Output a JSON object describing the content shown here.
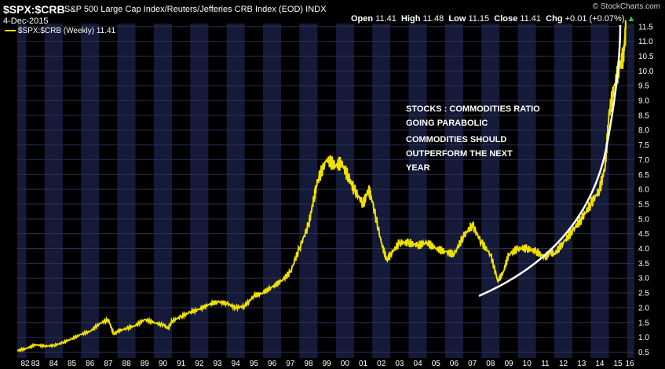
{
  "header": {
    "symbol": "$SPX:$CRB",
    "name": "S&P 500 Large Cap Index/Reuters/Jefferies CRB Index (EOD)  INDX",
    "date": "4-Dec-2015",
    "brand": "© StockCharts.com"
  },
  "ohlc": {
    "open_label": "Open",
    "open": "11.41",
    "high_label": "High",
    "high": "11.48",
    "low_label": "Low",
    "low": "11.15",
    "close_label": "Close",
    "close": "11.41",
    "chg_label": "Chg",
    "chg": "+0.01 (+0.07%)"
  },
  "legend": {
    "label": "$SPX:$CRB (Weekly) 11.41"
  },
  "annotations": {
    "line1": "STOCKS : COMMODITIES RATIO",
    "line2": "GOING PARABOLIC",
    "line3": "COMMODITIES SHOULD",
    "line4": "OUTPERFORM THE NEXT",
    "line5": "YEAR"
  },
  "colors": {
    "series": "#f0e000",
    "band_dark": "#000000",
    "band_light": "#141a38",
    "grid": "#2a3152",
    "curve": "#ffffff",
    "up": "#2ecc40"
  },
  "chart_data": {
    "type": "line",
    "title": "$SPX:$CRB",
    "xlabel": "",
    "ylabel": "",
    "x_ticks": [
      "82",
      "83",
      "84",
      "85",
      "86",
      "87",
      "88",
      "89",
      "90",
      "91",
      "92",
      "93",
      "94",
      "95",
      "96",
      "97",
      "98",
      "99",
      "00",
      "01",
      "02",
      "03",
      "04",
      "05",
      "06",
      "07",
      "08",
      "09",
      "10",
      "11",
      "12",
      "13",
      "14",
      "15",
      "16"
    ],
    "y_ticks": [
      "0.5",
      "1.0",
      "1.5",
      "2.0",
      "2.5",
      "3.0",
      "3.5",
      "4.0",
      "4.5",
      "5.0",
      "5.5",
      "6.0",
      "6.5",
      "7.0",
      "7.5",
      "8.0",
      "8.5",
      "9.0",
      "9.5",
      "10.0",
      "10.5",
      "11.0",
      "11.5"
    ],
    "ylim": [
      0.3,
      11.6
    ],
    "xlim": [
      1982.5,
      2016.4
    ],
    "grid": true,
    "y_axis_side": "right",
    "series": [
      {
        "name": "$SPX:$CRB",
        "x": [
          1982.5,
          1983.0,
          1983.5,
          1984.0,
          1984.5,
          1985.0,
          1985.5,
          1986.0,
          1986.5,
          1987.0,
          1987.5,
          1987.8,
          1988.0,
          1988.5,
          1989.0,
          1989.5,
          1990.0,
          1990.6,
          1990.8,
          1991.0,
          1991.5,
          1992.0,
          1992.5,
          1993.0,
          1993.5,
          1994.0,
          1994.5,
          1995.0,
          1995.5,
          1996.0,
          1996.5,
          1997.0,
          1997.5,
          1998.0,
          1998.5,
          1998.8,
          1999.0,
          1999.5,
          2000.0,
          2000.3,
          2000.7,
          2001.0,
          2001.5,
          2001.8,
          2002.0,
          2002.5,
          2002.8,
          2003.0,
          2003.5,
          2004.0,
          2004.5,
          2005.0,
          2005.5,
          2006.0,
          2006.5,
          2007.0,
          2007.5,
          2008.0,
          2008.5,
          2008.9,
          2009.2,
          2009.5,
          2010.0,
          2010.5,
          2011.0,
          2011.5,
          2011.8,
          2012.0,
          2012.5,
          2013.0,
          2013.5,
          2014.0,
          2014.5,
          2014.8,
          2015.0,
          2015.3,
          2015.6,
          2015.8,
          2015.93
        ],
        "values": [
          0.55,
          0.62,
          0.75,
          0.7,
          0.72,
          0.82,
          0.95,
          1.1,
          1.2,
          1.45,
          1.6,
          1.1,
          1.2,
          1.3,
          1.4,
          1.6,
          1.5,
          1.4,
          1.3,
          1.55,
          1.7,
          1.85,
          1.95,
          2.1,
          2.2,
          2.15,
          2.0,
          2.05,
          2.4,
          2.5,
          2.7,
          2.9,
          3.2,
          4.0,
          4.8,
          5.7,
          6.3,
          7.0,
          6.8,
          6.9,
          6.4,
          6.0,
          5.5,
          6.0,
          5.6,
          4.2,
          3.6,
          3.8,
          4.2,
          4.2,
          4.1,
          4.2,
          4.0,
          3.9,
          3.8,
          4.4,
          4.8,
          4.2,
          3.8,
          2.9,
          3.2,
          3.8,
          4.0,
          4.0,
          3.9,
          3.7,
          3.9,
          3.8,
          4.2,
          4.6,
          5.0,
          5.5,
          6.0,
          6.8,
          8.5,
          9.5,
          10.2,
          10.5,
          11.41
        ]
      }
    ]
  }
}
